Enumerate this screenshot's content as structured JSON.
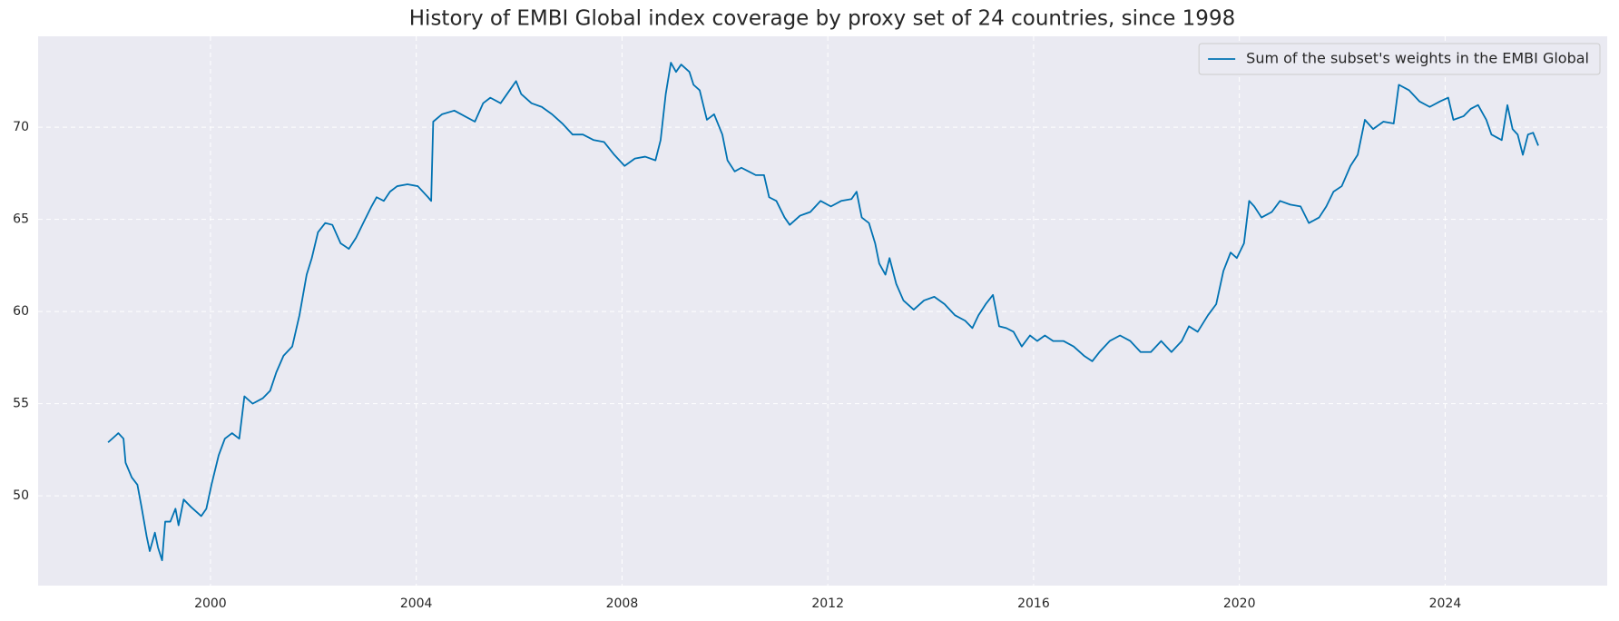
{
  "chart_data": {
    "type": "line",
    "title": "History of EMBI Global index coverage by proxy set of 24 countries, since 1998",
    "x": [
      1998.01,
      1998.21,
      1998.31,
      1998.35,
      1998.47,
      1998.58,
      1998.66,
      1998.76,
      1998.82,
      1998.92,
      1998.98,
      1999.06,
      1999.12,
      1999.22,
      1999.32,
      1999.38,
      1999.48,
      1999.62,
      1999.82,
      1999.92,
      2000.02,
      2000.16,
      2000.28,
      2000.42,
      2000.56,
      2000.66,
      2000.82,
      2001.02,
      2001.16,
      2001.28,
      2001.42,
      2001.59,
      2001.73,
      2001.87,
      2001.97,
      2002.09,
      2002.23,
      2002.37,
      2002.53,
      2002.69,
      2002.83,
      2002.97,
      2003.13,
      2003.23,
      2003.37,
      2003.49,
      2003.63,
      2003.83,
      2004.03,
      2004.23,
      2004.29,
      2004.33,
      2004.5,
      2004.74,
      2004.94,
      2005.14,
      2005.3,
      2005.44,
      2005.64,
      2005.84,
      2005.94,
      2006.04,
      2006.24,
      2006.44,
      2006.64,
      2006.84,
      2007.04,
      2007.24,
      2007.45,
      2007.65,
      2007.85,
      2008.05,
      2008.25,
      2008.45,
      2008.65,
      2008.75,
      2008.85,
      2008.95,
      2009.05,
      2009.15,
      2009.31,
      2009.39,
      2009.51,
      2009.65,
      2009.79,
      2009.95,
      2010.05,
      2010.19,
      2010.32,
      2010.46,
      2010.6,
      2010.76,
      2010.86,
      2011.0,
      2011.16,
      2011.26,
      2011.46,
      2011.66,
      2011.86,
      2012.06,
      2012.26,
      2012.46,
      2012.56,
      2012.66,
      2012.8,
      2012.92,
      2013.0,
      2013.12,
      2013.2,
      2013.33,
      2013.47,
      2013.67,
      2013.87,
      2014.07,
      2014.27,
      2014.47,
      2014.67,
      2014.81,
      2014.93,
      2015.07,
      2015.21,
      2015.33,
      2015.47,
      2015.61,
      2015.77,
      2015.93,
      2016.07,
      2016.22,
      2016.38,
      2016.58,
      2016.78,
      2016.98,
      2017.14,
      2017.28,
      2017.48,
      2017.68,
      2017.88,
      2018.08,
      2018.28,
      2018.48,
      2018.68,
      2018.88,
      2019.02,
      2019.19,
      2019.39,
      2019.55,
      2019.69,
      2019.83,
      2019.95,
      2020.09,
      2020.19,
      2020.29,
      2020.43,
      2020.63,
      2020.79,
      2020.99,
      2021.19,
      2021.35,
      2021.55,
      2021.69,
      2021.83,
      2021.99,
      2022.16,
      2022.3,
      2022.44,
      2022.6,
      2022.8,
      2023.0,
      2023.1,
      2023.3,
      2023.5,
      2023.7,
      2023.9,
      2024.06,
      2024.16,
      2024.36,
      2024.5,
      2024.64,
      2024.8,
      2024.9,
      2025.1,
      2025.21,
      2025.31,
      2025.41,
      2025.51,
      2025.61,
      2025.71,
      2025.81
    ],
    "series": [
      {
        "name": "Sum of the subset's weights in the EMBI Global",
        "color": "#0072b2",
        "values": [
          52.9,
          53.4,
          53.1,
          51.8,
          51.0,
          50.6,
          49.4,
          47.8,
          47.0,
          48.0,
          47.2,
          46.5,
          48.6,
          48.6,
          49.3,
          48.4,
          49.8,
          49.4,
          48.9,
          49.3,
          50.6,
          52.2,
          53.1,
          53.4,
          53.1,
          55.4,
          55.0,
          55.3,
          55.7,
          56.7,
          57.6,
          58.1,
          59.8,
          62.0,
          62.9,
          64.3,
          64.8,
          64.7,
          63.7,
          63.4,
          64.0,
          64.8,
          65.7,
          66.2,
          66.0,
          66.5,
          66.8,
          66.9,
          66.8,
          66.2,
          66.0,
          70.3,
          70.7,
          70.9,
          70.6,
          70.3,
          71.3,
          71.6,
          71.3,
          72.1,
          72.5,
          71.8,
          71.3,
          71.1,
          70.7,
          70.2,
          69.6,
          69.6,
          69.3,
          69.2,
          68.5,
          67.9,
          68.3,
          68.4,
          68.2,
          69.3,
          71.8,
          73.5,
          73.0,
          73.4,
          73.0,
          72.3,
          72.0,
          70.4,
          70.7,
          69.6,
          68.2,
          67.6,
          67.8,
          67.6,
          67.4,
          67.4,
          66.2,
          66.0,
          65.1,
          64.7,
          65.2,
          65.4,
          66.0,
          65.7,
          66.0,
          66.1,
          66.5,
          65.1,
          64.8,
          63.7,
          62.6,
          62.0,
          62.9,
          61.5,
          60.6,
          60.1,
          60.6,
          60.8,
          60.4,
          59.8,
          59.5,
          59.1,
          59.8,
          60.4,
          60.9,
          59.2,
          59.1,
          58.9,
          58.1,
          58.7,
          58.4,
          58.7,
          58.4,
          58.4,
          58.1,
          57.6,
          57.3,
          57.8,
          58.4,
          58.7,
          58.4,
          57.8,
          57.8,
          58.4,
          57.8,
          58.4,
          59.2,
          58.9,
          59.8,
          60.4,
          62.2,
          63.2,
          62.9,
          63.7,
          66.0,
          65.7,
          65.1,
          65.4,
          66.0,
          65.8,
          65.7,
          64.8,
          65.1,
          65.7,
          66.5,
          66.8,
          67.9,
          68.5,
          70.4,
          69.9,
          70.3,
          70.2,
          72.3,
          72.0,
          71.4,
          71.1,
          71.4,
          71.6,
          70.4,
          70.6,
          71.0,
          71.2,
          70.4,
          69.6,
          69.3,
          71.2,
          69.9,
          69.6,
          68.5,
          69.6,
          69.7,
          69.0
        ]
      }
    ],
    "xlim": [
      1996.65,
      2027.15
    ],
    "ylim": [
      45.13,
      74.93
    ],
    "xticks": [
      2000,
      2004,
      2008,
      2012,
      2016,
      2020,
      2024
    ],
    "yticks": [
      50,
      55,
      60,
      65,
      70
    ],
    "grid": true,
    "legend": "upper-right"
  }
}
